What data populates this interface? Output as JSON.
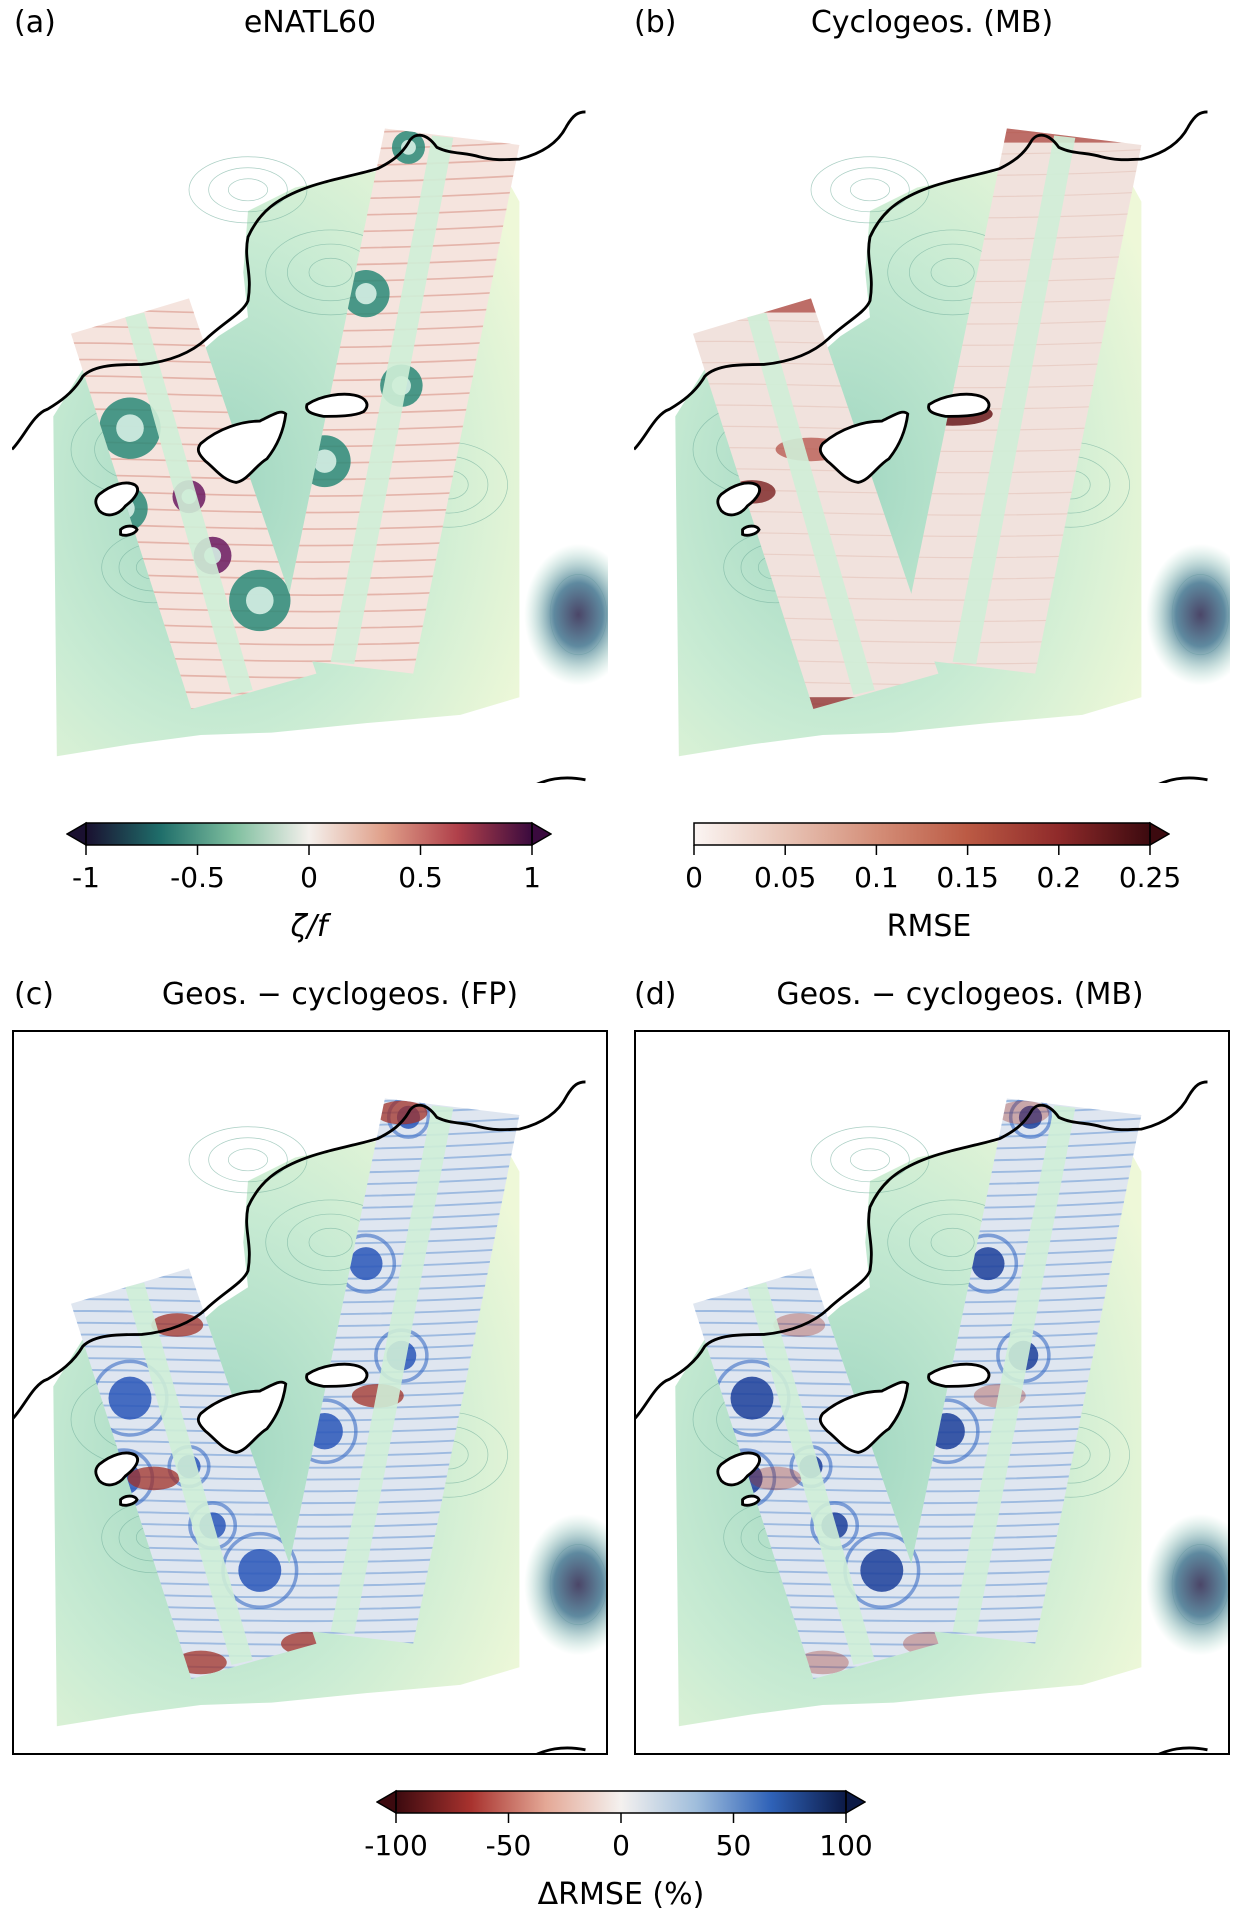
{
  "panels": [
    {
      "id": "a",
      "label": "(a)",
      "title": "eNATL60",
      "kind": "vorticity"
    },
    {
      "id": "b",
      "label": "(b)",
      "title": "Cyclogeos. (MB)",
      "kind": "rmse"
    },
    {
      "id": "c",
      "label": "(c)",
      "title": "Geos. − cyclogeos. (FP)",
      "kind": "drmse_fp"
    },
    {
      "id": "d",
      "label": "(d)",
      "title": "Geos. − cyclogeos. (MB)",
      "kind": "drmse_mb"
    }
  ],
  "colorbars": {
    "vorticity": {
      "label": "ζ/f",
      "ticks": [
        "-1",
        "-0.5",
        "0",
        "0.5",
        "1"
      ],
      "range": [
        -1,
        1
      ],
      "extend": "both",
      "colors": [
        "#1a1030",
        "#1f6e6a",
        "#7fbf9f",
        "#f4f0ec",
        "#e0a08a",
        "#b0404a",
        "#3a0a3e"
      ]
    },
    "rmse": {
      "label": "RMSE",
      "ticks": [
        "0",
        "0.05",
        "0.1",
        "0.15",
        "0.2",
        "0.25"
      ],
      "range": [
        0,
        0.25
      ],
      "extend": "max",
      "colors": [
        "#fbf5f3",
        "#e8c4b6",
        "#d48e78",
        "#bb5a44",
        "#8f2a2a",
        "#3c0a0f"
      ]
    },
    "drmse": {
      "label": "ΔRMSE  (%)",
      "ticks": [
        "-100",
        "-50",
        "0",
        "50",
        "100"
      ],
      "range": [
        -100,
        100
      ],
      "extend": "both",
      "colors": [
        "#3c0a0f",
        "#a8322e",
        "#e4a896",
        "#f4f1ef",
        "#a0bedc",
        "#2f62b8",
        "#0c1a46"
      ]
    }
  }
}
